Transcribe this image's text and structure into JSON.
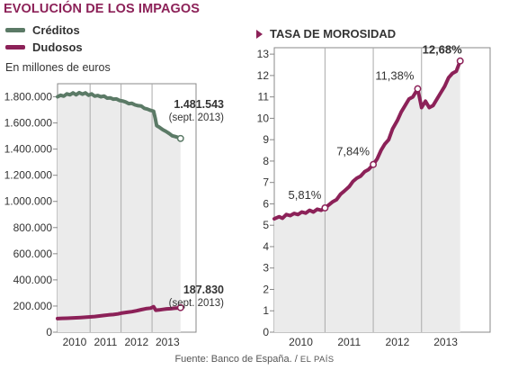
{
  "title": "EVOLUCIÓN DE LOS IMPAGOS",
  "legend": [
    {
      "label": "Créditos",
      "color": "#5b7a66"
    },
    {
      "label": "Dudosos",
      "color": "#8c2158"
    }
  ],
  "unit_label": "En millones de euros",
  "right_title": "TASA DE MOROSIDAD",
  "source": {
    "text": "Fuente: Banco de España.",
    "brand": "EL PAÍS"
  },
  "colors": {
    "accent": "#8c2158",
    "creditos": "#5b7a66",
    "plot_bg": "#ebebeb",
    "grid": "#aaaaaa"
  },
  "chart_data": [
    {
      "type": "line",
      "title": "",
      "ylabel": "En millones de euros",
      "xlim": [
        2009.45,
        2013.92
      ],
      "ylim": [
        0,
        1900000
      ],
      "x_tick_labels": [
        "2010",
        "2011",
        "2012",
        "2013"
      ],
      "x_tick_positions": [
        2010,
        2011,
        2012,
        2013
      ],
      "year_dividers": [
        2010.5,
        2011.5,
        2012.5
      ],
      "y_tick_values": [
        0,
        200000,
        400000,
        600000,
        800000,
        1000000,
        1200000,
        1400000,
        1600000,
        1800000
      ],
      "y_tick_labels": [
        "0",
        "200.000",
        "400.000",
        "600.000",
        "800.000",
        "1.000.000",
        "1.200.000",
        "1.400.000",
        "1.600.000",
        "1.800.000"
      ],
      "grid": "vertical year dividers",
      "series": [
        {
          "name": "Créditos",
          "color": "#5b7a66",
          "points": [
            [
              2009.45,
              1800000
            ],
            [
              2009.55,
              1812000
            ],
            [
              2009.65,
              1805000
            ],
            [
              2009.75,
              1822000
            ],
            [
              2009.85,
              1815000
            ],
            [
              2009.95,
              1830000
            ],
            [
              2010.05,
              1815000
            ],
            [
              2010.15,
              1832000
            ],
            [
              2010.25,
              1820000
            ],
            [
              2010.35,
              1830000
            ],
            [
              2010.45,
              1812000
            ],
            [
              2010.55,
              1822000
            ],
            [
              2010.65,
              1805000
            ],
            [
              2010.75,
              1810000
            ],
            [
              2010.85,
              1800000
            ],
            [
              2010.95,
              1806000
            ],
            [
              2011.05,
              1790000
            ],
            [
              2011.15,
              1792000
            ],
            [
              2011.25,
              1782000
            ],
            [
              2011.35,
              1784000
            ],
            [
              2011.45,
              1772000
            ],
            [
              2011.55,
              1768000
            ],
            [
              2011.65,
              1760000
            ],
            [
              2011.75,
              1748000
            ],
            [
              2011.85,
              1750000
            ],
            [
              2011.95,
              1738000
            ],
            [
              2012.05,
              1732000
            ],
            [
              2012.15,
              1730000
            ],
            [
              2012.25,
              1712000
            ],
            [
              2012.35,
              1706000
            ],
            [
              2012.45,
              1696000
            ],
            [
              2012.55,
              1690000
            ],
            [
              2012.6,
              1640000
            ],
            [
              2012.65,
              1580000
            ],
            [
              2012.75,
              1565000
            ],
            [
              2012.85,
              1548000
            ],
            [
              2012.95,
              1535000
            ],
            [
              2013.05,
              1520000
            ],
            [
              2013.15,
              1502000
            ],
            [
              2013.25,
              1496000
            ],
            [
              2013.35,
              1488000
            ],
            [
              2013.42,
              1481543
            ]
          ],
          "annotation": {
            "value": "1.481.543",
            "date": "(sept. 2013)",
            "x": 2013.42,
            "y": 1481543
          }
        },
        {
          "name": "Dudosos",
          "color": "#8c2158",
          "points": [
            [
              2009.45,
              104000
            ],
            [
              2009.6,
              106000
            ],
            [
              2009.75,
              107000
            ],
            [
              2009.9,
              108000
            ],
            [
              2010.05,
              110000
            ],
            [
              2010.2,
              112000
            ],
            [
              2010.35,
              114000
            ],
            [
              2010.5,
              117000
            ],
            [
              2010.65,
              120000
            ],
            [
              2010.8,
              124000
            ],
            [
              2010.95,
              128000
            ],
            [
              2011.1,
              132000
            ],
            [
              2011.25,
              135000
            ],
            [
              2011.4,
              140000
            ],
            [
              2011.55,
              147000
            ],
            [
              2011.7,
              152000
            ],
            [
              2011.85,
              157000
            ],
            [
              2012.0,
              164000
            ],
            [
              2012.15,
              172000
            ],
            [
              2012.3,
              180000
            ],
            [
              2012.45,
              184000
            ],
            [
              2012.55,
              195000
            ],
            [
              2012.62,
              168000
            ],
            [
              2012.72,
              170000
            ],
            [
              2012.85,
              174000
            ],
            [
              2012.97,
              178000
            ],
            [
              2013.1,
              180000
            ],
            [
              2013.22,
              183000
            ],
            [
              2013.32,
              185000
            ],
            [
              2013.42,
              187830
            ]
          ],
          "annotation": {
            "value": "187.830",
            "date": "(sept. 2013)",
            "x": 2013.42,
            "y": 187830
          }
        }
      ]
    },
    {
      "type": "line",
      "title": "TASA DE MOROSIDAD",
      "xlim": [
        2009.45,
        2013.92
      ],
      "ylim": [
        0,
        13.3
      ],
      "x_tick_labels": [
        "2010",
        "2011",
        "2012",
        "2013"
      ],
      "x_tick_positions": [
        2010,
        2011,
        2012,
        2013
      ],
      "year_dividers": [
        2010.5,
        2011.5,
        2012.5
      ],
      "y_tick_values": [
        0,
        1,
        2,
        3,
        4,
        5,
        6,
        7,
        8,
        9,
        10,
        11,
        12,
        13
      ],
      "y_tick_labels": [
        "0",
        "1",
        "2",
        "3",
        "4",
        "5",
        "6",
        "7",
        "8",
        "9",
        "10",
        "11",
        "12",
        "13"
      ],
      "grid": "vertical year dividers",
      "series": [
        {
          "name": "Tasa de morosidad",
          "color": "#8c2158",
          "points": [
            [
              2009.45,
              5.3
            ],
            [
              2009.55,
              5.4
            ],
            [
              2009.62,
              5.33
            ],
            [
              2009.7,
              5.5
            ],
            [
              2009.78,
              5.45
            ],
            [
              2009.86,
              5.55
            ],
            [
              2009.94,
              5.5
            ],
            [
              2010.02,
              5.62
            ],
            [
              2010.1,
              5.57
            ],
            [
              2010.18,
              5.7
            ],
            [
              2010.26,
              5.62
            ],
            [
              2010.34,
              5.75
            ],
            [
              2010.42,
              5.7
            ],
            [
              2010.5,
              5.81
            ],
            [
              2010.58,
              5.95
            ],
            [
              2010.66,
              6.1
            ],
            [
              2010.74,
              6.2
            ],
            [
              2010.82,
              6.45
            ],
            [
              2010.9,
              6.6
            ],
            [
              2011.0,
              6.8
            ],
            [
              2011.08,
              7.05
            ],
            [
              2011.16,
              7.2
            ],
            [
              2011.24,
              7.3
            ],
            [
              2011.32,
              7.5
            ],
            [
              2011.4,
              7.6
            ],
            [
              2011.5,
              7.84
            ],
            [
              2011.58,
              8.1
            ],
            [
              2011.66,
              8.5
            ],
            [
              2011.74,
              8.8
            ],
            [
              2011.82,
              9.0
            ],
            [
              2011.9,
              9.5
            ],
            [
              2012.0,
              9.9
            ],
            [
              2012.08,
              10.3
            ],
            [
              2012.16,
              10.6
            ],
            [
              2012.24,
              10.9
            ],
            [
              2012.32,
              11.0
            ],
            [
              2012.42,
              11.38
            ],
            [
              2012.5,
              10.5
            ],
            [
              2012.58,
              10.8
            ],
            [
              2012.66,
              10.5
            ],
            [
              2012.74,
              10.6
            ],
            [
              2012.82,
              10.9
            ],
            [
              2012.9,
              11.2
            ],
            [
              2012.98,
              11.5
            ],
            [
              2013.06,
              11.9
            ],
            [
              2013.14,
              12.1
            ],
            [
              2013.22,
              12.2
            ],
            [
              2013.3,
              12.68
            ]
          ],
          "annotations": [
            {
              "label": "5,81%",
              "x": 2010.5,
              "y": 5.81,
              "bold": false
            },
            {
              "label": "7,84%",
              "x": 2011.5,
              "y": 7.84,
              "bold": false
            },
            {
              "label": "11,38%",
              "x": 2012.42,
              "y": 11.38,
              "bold": false
            },
            {
              "label": "12,68%",
              "x": 2013.3,
              "y": 12.68,
              "bold": true
            }
          ]
        }
      ]
    }
  ]
}
